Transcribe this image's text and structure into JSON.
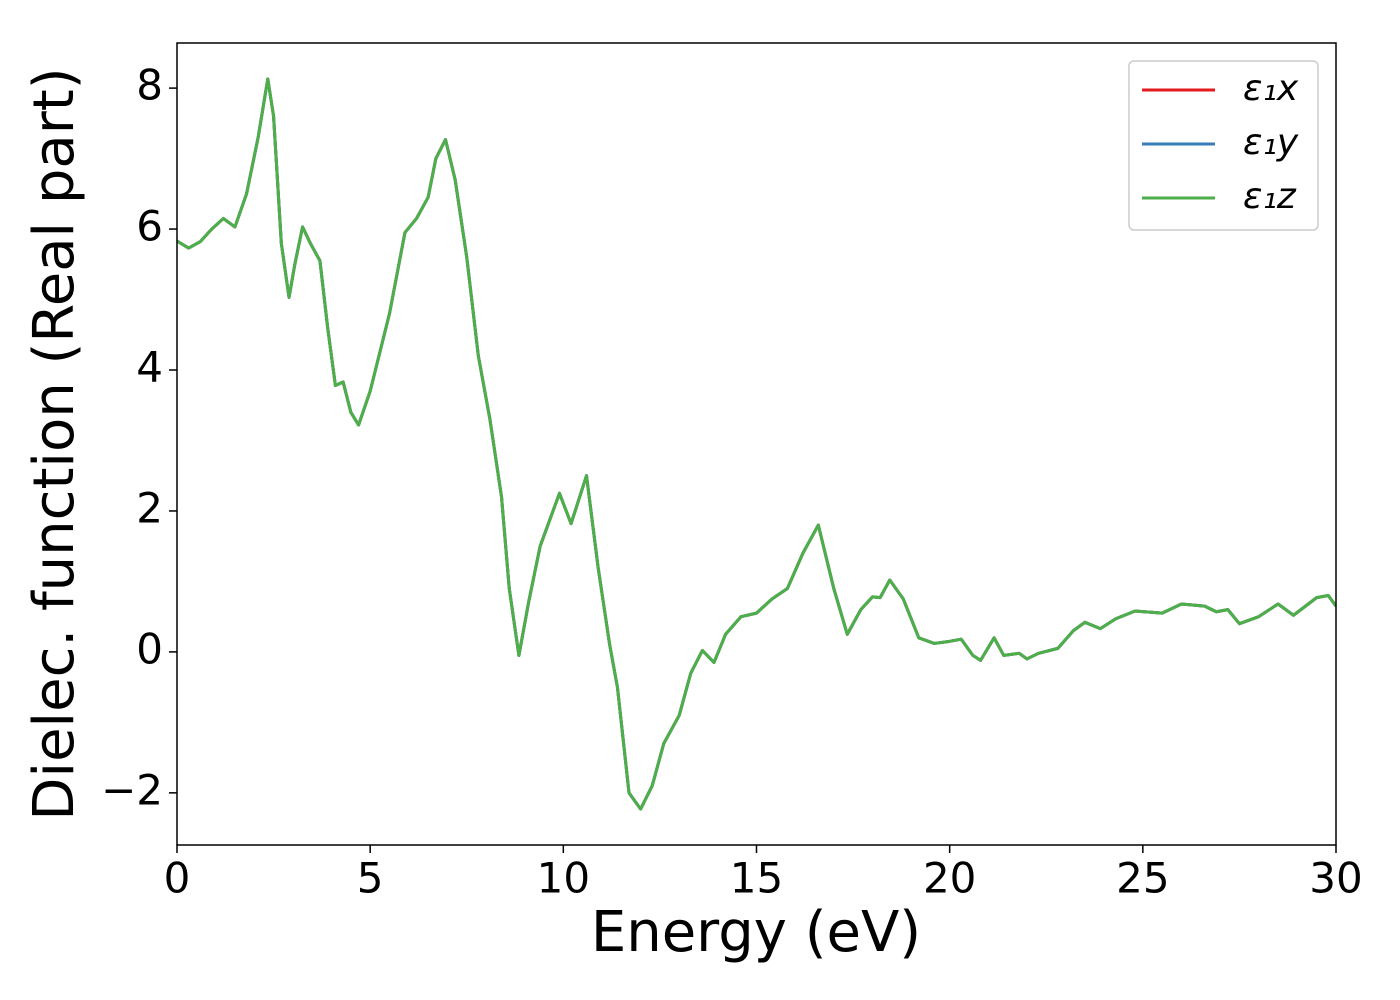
{
  "chart_data": {
    "type": "line",
    "xlabel": "Energy (eV)",
    "ylabel": "Dielec. function (Real part)",
    "x": [
      0,
      0.3,
      0.6,
      0.9,
      1.2,
      1.5,
      1.8,
      2.1,
      2.35,
      2.5,
      2.7,
      2.9,
      3.05,
      3.25,
      3.45,
      3.7,
      3.9,
      4.1,
      4.3,
      4.5,
      4.7,
      5.0,
      5.5,
      5.9,
      6.2,
      6.5,
      6.7,
      6.95,
      7.2,
      7.5,
      7.8,
      8.1,
      8.4,
      8.6,
      8.85,
      9.1,
      9.4,
      9.9,
      10.2,
      10.6,
      10.9,
      11.2,
      11.4,
      11.7,
      12.0,
      12.3,
      12.6,
      13.0,
      13.3,
      13.6,
      13.9,
      14.2,
      14.6,
      15.0,
      15.4,
      15.8,
      16.2,
      16.6,
      17.0,
      17.35,
      17.7,
      18.0,
      18.2,
      18.45,
      18.8,
      19.2,
      19.6,
      20.0,
      20.3,
      20.6,
      20.8,
      21.15,
      21.4,
      21.8,
      22.0,
      22.3,
      22.8,
      23.2,
      23.5,
      23.9,
      24.3,
      24.8,
      25.5,
      26.0,
      26.6,
      26.9,
      27.2,
      27.5,
      28.0,
      28.5,
      28.9,
      29.5,
      29.8,
      30
    ],
    "series": [
      {
        "name": "ε₁x",
        "color": "#e41a1c",
        "values": [
          5.83,
          5.73,
          5.82,
          6.0,
          6.15,
          6.03,
          6.5,
          7.3,
          8.13,
          7.6,
          5.8,
          5.03,
          5.5,
          6.03,
          5.8,
          5.55,
          4.6,
          3.78,
          3.83,
          3.4,
          3.22,
          3.7,
          4.8,
          5.95,
          6.15,
          6.45,
          7.0,
          7.27,
          6.7,
          5.6,
          4.2,
          3.3,
          2.2,
          0.9,
          -0.05,
          0.7,
          1.5,
          2.25,
          1.82,
          2.5,
          1.2,
          0.1,
          -0.5,
          -2.0,
          -2.23,
          -1.9,
          -1.3,
          -0.9,
          -0.3,
          0.02,
          -0.15,
          0.25,
          0.5,
          0.55,
          0.75,
          0.9,
          1.4,
          1.8,
          0.9,
          0.25,
          0.6,
          0.78,
          0.77,
          1.02,
          0.75,
          0.2,
          0.12,
          0.15,
          0.18,
          -0.05,
          -0.12,
          0.2,
          -0.05,
          -0.02,
          -0.1,
          -0.02,
          0.05,
          0.3,
          0.42,
          0.33,
          0.47,
          0.58,
          0.55,
          0.68,
          0.65,
          0.57,
          0.6,
          0.4,
          0.5,
          0.68,
          0.52,
          0.77,
          0.8,
          0.65
        ]
      },
      {
        "name": "ε₁y",
        "color": "#377eb8",
        "values": [
          5.83,
          5.73,
          5.82,
          6.0,
          6.15,
          6.03,
          6.5,
          7.3,
          8.13,
          7.6,
          5.8,
          5.03,
          5.5,
          6.03,
          5.8,
          5.55,
          4.6,
          3.78,
          3.83,
          3.4,
          3.22,
          3.7,
          4.8,
          5.95,
          6.15,
          6.45,
          7.0,
          7.27,
          6.7,
          5.6,
          4.2,
          3.3,
          2.2,
          0.9,
          -0.05,
          0.7,
          1.5,
          2.25,
          1.82,
          2.5,
          1.2,
          0.1,
          -0.5,
          -2.0,
          -2.23,
          -1.9,
          -1.3,
          -0.9,
          -0.3,
          0.02,
          -0.15,
          0.25,
          0.5,
          0.55,
          0.75,
          0.9,
          1.4,
          1.8,
          0.9,
          0.25,
          0.6,
          0.78,
          0.77,
          1.02,
          0.75,
          0.2,
          0.12,
          0.15,
          0.18,
          -0.05,
          -0.12,
          0.2,
          -0.05,
          -0.02,
          -0.1,
          -0.02,
          0.05,
          0.3,
          0.42,
          0.33,
          0.47,
          0.58,
          0.55,
          0.68,
          0.65,
          0.57,
          0.6,
          0.4,
          0.5,
          0.68,
          0.52,
          0.77,
          0.8,
          0.65
        ]
      },
      {
        "name": "ε₁z",
        "color": "#4daf4a",
        "values": [
          5.83,
          5.73,
          5.82,
          6.0,
          6.15,
          6.03,
          6.5,
          7.3,
          8.13,
          7.6,
          5.8,
          5.03,
          5.5,
          6.03,
          5.8,
          5.55,
          4.6,
          3.78,
          3.83,
          3.4,
          3.22,
          3.7,
          4.8,
          5.95,
          6.15,
          6.45,
          7.0,
          7.27,
          6.7,
          5.6,
          4.2,
          3.3,
          2.2,
          0.9,
          -0.05,
          0.7,
          1.5,
          2.25,
          1.82,
          2.5,
          1.2,
          0.1,
          -0.5,
          -2.0,
          -2.23,
          -1.9,
          -1.3,
          -0.9,
          -0.3,
          0.02,
          -0.15,
          0.25,
          0.5,
          0.55,
          0.75,
          0.9,
          1.4,
          1.8,
          0.9,
          0.25,
          0.6,
          0.78,
          0.77,
          1.02,
          0.75,
          0.2,
          0.12,
          0.15,
          0.18,
          -0.05,
          -0.12,
          0.2,
          -0.05,
          -0.02,
          -0.1,
          -0.02,
          0.05,
          0.3,
          0.42,
          0.33,
          0.47,
          0.58,
          0.55,
          0.68,
          0.65,
          0.57,
          0.6,
          0.4,
          0.5,
          0.68,
          0.52,
          0.77,
          0.8,
          0.65
        ]
      }
    ],
    "xlim": [
      0,
      30
    ],
    "xticks": [
      0,
      5,
      10,
      15,
      20,
      25,
      30
    ],
    "ylim": [
      -2.74,
      8.64
    ],
    "yticks": [
      {
        "value": -2,
        "label": "−2"
      },
      0,
      2,
      4,
      6,
      8
    ],
    "grid": false,
    "legend": "upper right"
  }
}
